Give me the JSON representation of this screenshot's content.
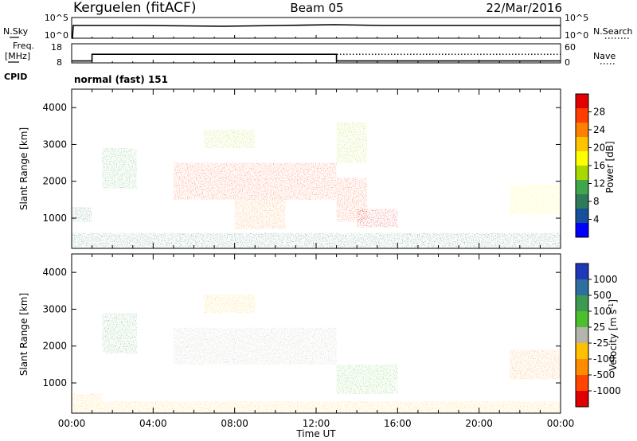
{
  "header": {
    "station": "Kerguelen (fitACF)",
    "beam": "Beam 05",
    "date": "22/Mar/2016"
  },
  "top_panels": {
    "nsky_label": "N.Sky",
    "nsky_ticks": [
      "10^5",
      "10^0"
    ],
    "nsearch_label": "N.Search",
    "nsearch_ticks": [
      "10^5",
      "10^0"
    ],
    "freq_label": "Freq.",
    "freq_unit": "[MHz]",
    "freq_ticks": [
      "18",
      "8"
    ],
    "nave_label": "Nave",
    "nave_ticks": [
      "60",
      "0"
    ],
    "cpid_label": "CPID",
    "cpid_value": "normal (fast) 151",
    "freq_mhz_segments": [
      {
        "from": "00:00",
        "to": "01:00",
        "value": 9
      },
      {
        "from": "01:00",
        "to": "13:00",
        "value": 12.5
      },
      {
        "from": "13:00",
        "to": "24:00",
        "value": 9
      }
    ],
    "nave_level": 27
  },
  "power_panel": {
    "ylabel": "Slant Range [km]",
    "yticks": [
      "4000",
      "3000",
      "2000",
      "1000"
    ],
    "cbar_label": "Power [dB]",
    "cbar_ticks": [
      "28",
      "24",
      "20",
      "16",
      "12",
      "8",
      "4"
    ],
    "cbar_colors": [
      "#e30000",
      "#ff3d00",
      "#ff8000",
      "#ffc400",
      "#ffff00",
      "#a8d800",
      "#3fa64a",
      "#2f7a5a",
      "#174f9a",
      "#0000ff"
    ]
  },
  "velocity_panel": {
    "ylabel": "Slant Range [km]",
    "yticks": [
      "4000",
      "3000",
      "2000",
      "1000"
    ],
    "cbar_label": "Velocity [m s",
    "cbar_label_sup": "-1",
    "cbar_label_end": "]",
    "cbar_ticks": [
      "1000",
      "500",
      "100",
      "25",
      "-25",
      "-100",
      "-500",
      "-1000"
    ],
    "cbar_colors": [
      "#2038b8",
      "#2f6fa0",
      "#3c9a52",
      "#4cc02c",
      "#b4b4ac",
      "#ffc000",
      "#ff8c00",
      "#ff4500",
      "#e00000"
    ]
  },
  "xaxis": {
    "label": "Time UT",
    "ticks": [
      "00:00",
      "04:00",
      "08:00",
      "12:00",
      "16:00",
      "20:00",
      "00:00"
    ]
  },
  "chart_data": [
    {
      "type": "heatmap",
      "quantity": "power",
      "unit": "dB",
      "xlim": [
        0,
        24
      ],
      "ylim": [
        180,
        4500
      ],
      "clim": [
        0,
        30
      ],
      "regions": [
        {
          "t0": 0.0,
          "t1": 24.0,
          "r0": 200,
          "r1": 600,
          "value": 8
        },
        {
          "t0": 0.0,
          "t1": 1.0,
          "r0": 900,
          "r1": 1300,
          "value": 8
        },
        {
          "t0": 1.5,
          "t1": 3.2,
          "r0": 1800,
          "r1": 2900,
          "value": 10
        },
        {
          "t0": 5.0,
          "t1": 13.0,
          "r0": 1500,
          "r1": 2500,
          "value": 26
        },
        {
          "t0": 8.0,
          "t1": 10.5,
          "r0": 700,
          "r1": 1500,
          "value": 22
        },
        {
          "t0": 6.5,
          "t1": 9.0,
          "r0": 2900,
          "r1": 3400,
          "value": 15
        },
        {
          "t0": 13.0,
          "t1": 14.5,
          "r0": 900,
          "r1": 2100,
          "value": 24
        },
        {
          "t0": 14.0,
          "t1": 16.0,
          "r0": 750,
          "r1": 1250,
          "value": 28
        },
        {
          "t0": 13.0,
          "t1": 14.5,
          "r0": 2500,
          "r1": 3600,
          "value": 14
        },
        {
          "t0": 21.5,
          "t1": 24.0,
          "r0": 1100,
          "r1": 1900,
          "value": 18
        }
      ]
    },
    {
      "type": "heatmap",
      "quantity": "velocity",
      "unit": "m s^-1",
      "xlim": [
        0,
        24
      ],
      "ylim": [
        180,
        4500
      ],
      "clim": [
        -1000,
        1000
      ],
      "regions": [
        {
          "t0": 0.0,
          "t1": 1.5,
          "r0": 200,
          "r1": 700,
          "value": -80
        },
        {
          "t0": 1.5,
          "t1": 24.0,
          "r0": 200,
          "r1": 500,
          "value": -60
        },
        {
          "t0": 1.5,
          "t1": 3.2,
          "r0": 1800,
          "r1": 2900,
          "value": 300
        },
        {
          "t0": 5.0,
          "t1": 13.0,
          "r0": 1500,
          "r1": 2500,
          "value": 0
        },
        {
          "t0": 6.5,
          "t1": 9.0,
          "r0": 2900,
          "r1": 3400,
          "value": -100
        },
        {
          "t0": 13.0,
          "t1": 16.0,
          "r0": 700,
          "r1": 1500,
          "value": 80
        },
        {
          "t0": 21.5,
          "t1": 24.0,
          "r0": 1100,
          "r1": 1900,
          "value": -150
        }
      ]
    }
  ]
}
